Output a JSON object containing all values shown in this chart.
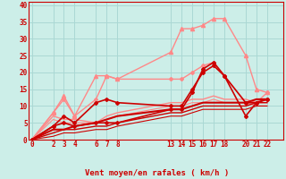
{
  "bg_color": "#cceee8",
  "grid_color": "#aad8d4",
  "line_color_dark": "#cc0000",
  "line_color_light": "#ff8888",
  "xlabel": "Vent moyen/en rafales ( km/h )",
  "xlabel_color": "#cc0000",
  "tick_color": "#cc0000",
  "xticks": [
    0,
    2,
    3,
    4,
    6,
    7,
    8,
    13,
    14,
    15,
    16,
    17,
    18,
    20,
    21,
    22
  ],
  "yticks": [
    0,
    5,
    10,
    15,
    20,
    25,
    30,
    35,
    40
  ],
  "xlim": [
    -0.3,
    23.5
  ],
  "ylim": [
    0,
    41
  ],
  "lines_dark": [
    {
      "x": [
        0,
        2,
        3,
        4,
        6,
        7,
        8,
        13,
        14,
        15,
        16,
        17,
        18,
        20,
        21,
        22
      ],
      "y": [
        0,
        4,
        5,
        4,
        5,
        5,
        5,
        9,
        9,
        14,
        21,
        23,
        19,
        7,
        11,
        12
      ],
      "marker": "D",
      "ms": 2,
      "lw": 1.2
    },
    {
      "x": [
        0,
        2,
        3,
        4,
        6,
        7,
        8,
        13,
        14,
        15,
        16,
        17,
        18,
        20,
        21,
        22
      ],
      "y": [
        0,
        4,
        7,
        5,
        11,
        12,
        11,
        10,
        10,
        15,
        20,
        22,
        19,
        11,
        11,
        12
      ],
      "marker": "D",
      "ms": 2,
      "lw": 1.2
    },
    {
      "x": [
        0,
        2,
        3,
        4,
        6,
        7,
        8,
        13,
        14,
        15,
        16,
        17,
        18,
        20,
        21,
        22
      ],
      "y": [
        0,
        3,
        3,
        4,
        5,
        6,
        7,
        9,
        9,
        10,
        11,
        11,
        11,
        11,
        12,
        12
      ],
      "marker": null,
      "ms": 0,
      "lw": 1.5
    },
    {
      "x": [
        0,
        2,
        3,
        4,
        6,
        7,
        8,
        13,
        14,
        15,
        16,
        17,
        18,
        20,
        21,
        22
      ],
      "y": [
        0,
        2,
        3,
        3,
        4,
        4,
        5,
        8,
        8,
        9,
        10,
        10,
        10,
        10,
        11,
        11
      ],
      "marker": null,
      "ms": 0,
      "lw": 1.0
    },
    {
      "x": [
        0,
        2,
        3,
        4,
        6,
        7,
        8,
        13,
        14,
        15,
        16,
        17,
        18,
        20,
        21,
        22
      ],
      "y": [
        0,
        1,
        2,
        2,
        3,
        3,
        4,
        7,
        7,
        8,
        9,
        9,
        9,
        9,
        10,
        10
      ],
      "marker": null,
      "ms": 0,
      "lw": 0.8
    }
  ],
  "lines_light": [
    {
      "x": [
        0,
        2,
        3,
        4,
        6,
        7,
        8,
        13,
        14,
        15,
        16,
        17,
        18,
        20,
        21,
        22
      ],
      "y": [
        0,
        8,
        13,
        7,
        19,
        19,
        18,
        26,
        33,
        33,
        34,
        36,
        36,
        25,
        15,
        14
      ],
      "marker": "^",
      "ms": 3,
      "lw": 1.0
    },
    {
      "x": [
        0,
        2,
        3,
        4,
        6,
        7,
        8,
        13,
        14,
        15,
        16,
        17,
        18,
        20,
        21,
        22
      ],
      "y": [
        0,
        8,
        12,
        7,
        12,
        19,
        18,
        18,
        18,
        20,
        22,
        23,
        19,
        11,
        11,
        14
      ],
      "marker": "D",
      "ms": 2,
      "lw": 1.0
    },
    {
      "x": [
        0,
        2,
        3,
        4,
        6,
        7,
        8,
        13,
        14,
        15,
        16,
        17,
        18,
        20,
        21,
        22
      ],
      "y": [
        0,
        7,
        6,
        6,
        5,
        7,
        8,
        11,
        11,
        12,
        12,
        13,
        12,
        12,
        11,
        11
      ],
      "marker": null,
      "ms": 0,
      "lw": 1.0
    },
    {
      "x": [
        0,
        2,
        3,
        4,
        6,
        7,
        8,
        13,
        14,
        15,
        16,
        17,
        18,
        20,
        21,
        22
      ],
      "y": [
        0,
        6,
        5,
        5,
        5,
        6,
        7,
        10,
        10,
        11,
        11,
        12,
        11,
        11,
        10,
        10
      ],
      "marker": null,
      "ms": 0,
      "lw": 0.8
    }
  ]
}
